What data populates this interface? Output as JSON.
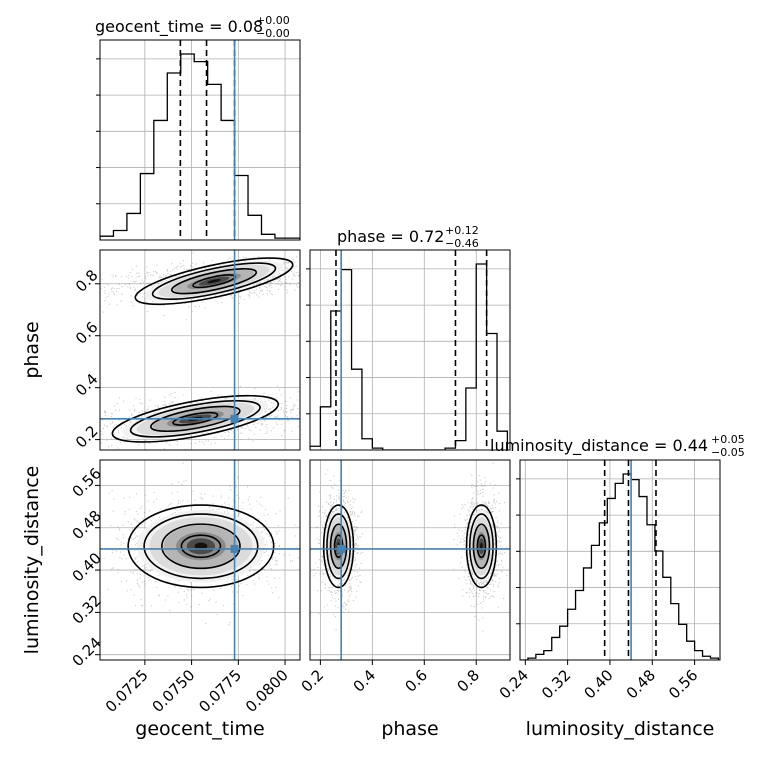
{
  "chart_data": {
    "type": "corner",
    "parameters": [
      "geocent_time",
      "phase",
      "luminosity_distance"
    ],
    "axis_labels": {
      "geocent_time": "geocent_time",
      "phase": "phase",
      "luminosity_distance": "luminosity_distance"
    },
    "ranges": {
      "geocent_time": [
        0.0701,
        0.0808
      ],
      "phase": [
        0.16,
        0.93
      ],
      "luminosity_distance": [
        0.23,
        0.608
      ]
    },
    "ticks": {
      "geocent_time": [
        "0.0725",
        "0.0750",
        "0.0775",
        "0.0800"
      ],
      "phase": [
        "0.2",
        "0.4",
        "0.6",
        "0.8"
      ],
      "luminosity_distance": [
        "0.24",
        "0.32",
        "0.40",
        "0.48",
        "0.56"
      ]
    },
    "truths": {
      "geocent_time": 0.0773,
      "phase": 0.28,
      "luminosity_distance": 0.44
    },
    "titles": {
      "geocent_time": {
        "text": "geocent_time = 0.08",
        "plus": "+0.00",
        "minus": "−0.00"
      },
      "phase": {
        "text": "phase = 0.72",
        "plus": "+0.12",
        "minus": "−0.46"
      },
      "luminosity_distance": {
        "text": "luminosity_distance = 0.44",
        "plus": "+0.05",
        "minus": "−0.05"
      }
    },
    "quantiles": {
      "geocent_time": [
        0.0744,
        0.0758,
        0.0773
      ],
      "phase": [
        0.26,
        0.72,
        0.84
      ],
      "luminosity_distance": [
        0.39,
        0.435,
        0.487
      ]
    },
    "marginals": {
      "geocent_time": {
        "edges": [
          0.0701,
          0.07082,
          0.07154,
          0.07226,
          0.07298,
          0.0737,
          0.07442,
          0.07514,
          0.07586,
          0.07658,
          0.0773,
          0.07802,
          0.07874,
          0.07946,
          0.0808
        ],
        "counts": [
          0.02,
          0.05,
          0.14,
          0.35,
          0.63,
          0.88,
          0.98,
          0.94,
          0.82,
          0.63,
          0.34,
          0.13,
          0.03,
          0.01
        ]
      },
      "phase": {
        "edges": [
          0.16,
          0.2,
          0.24,
          0.28,
          0.32,
          0.36,
          0.4,
          0.44,
          0.48,
          0.52,
          0.56,
          0.6,
          0.64,
          0.68,
          0.72,
          0.76,
          0.8,
          0.84,
          0.88,
          0.92
        ],
        "counts": [
          0.02,
          0.23,
          0.74,
          0.96,
          0.43,
          0.06,
          0.01,
          0.0,
          0.0,
          0.0,
          0.0,
          0.0,
          0.0,
          0.01,
          0.05,
          0.33,
          0.99,
          0.62,
          0.1
        ]
      },
      "luminosity_distance": {
        "edges": [
          0.23,
          0.245,
          0.26,
          0.275,
          0.29,
          0.305,
          0.32,
          0.335,
          0.35,
          0.365,
          0.38,
          0.395,
          0.41,
          0.425,
          0.44,
          0.455,
          0.47,
          0.485,
          0.5,
          0.515,
          0.53,
          0.545,
          0.56,
          0.575,
          0.59,
          0.605
        ],
        "counts": [
          0.0,
          0.01,
          0.03,
          0.05,
          0.12,
          0.18,
          0.27,
          0.37,
          0.49,
          0.61,
          0.73,
          0.86,
          0.94,
          0.99,
          0.96,
          0.87,
          0.72,
          0.58,
          0.44,
          0.3,
          0.19,
          0.1,
          0.05,
          0.02,
          0.01
        ]
      }
    },
    "clusters": {
      "phase_vs_geocent_time": [
        {
          "x": 0.0762,
          "y": 0.81,
          "sx": 0.0021,
          "sy": 0.03,
          "rho": 0.35
        },
        {
          "x": 0.0752,
          "y": 0.28,
          "sx": 0.0022,
          "sy": 0.033,
          "rho": 0.3
        }
      ],
      "luminosity_distance_vs_geocent_time": [
        {
          "x": 0.0755,
          "y": 0.445,
          "sx": 0.0019,
          "sy": 0.038,
          "rho": 0.0
        }
      ],
      "luminosity_distance_vs_phase": [
        {
          "x": 0.27,
          "y": 0.445,
          "sx": 0.028,
          "sy": 0.038,
          "rho": 0.0
        },
        {
          "x": 0.82,
          "y": 0.445,
          "sx": 0.028,
          "sy": 0.038,
          "rho": 0.0
        }
      ]
    }
  }
}
